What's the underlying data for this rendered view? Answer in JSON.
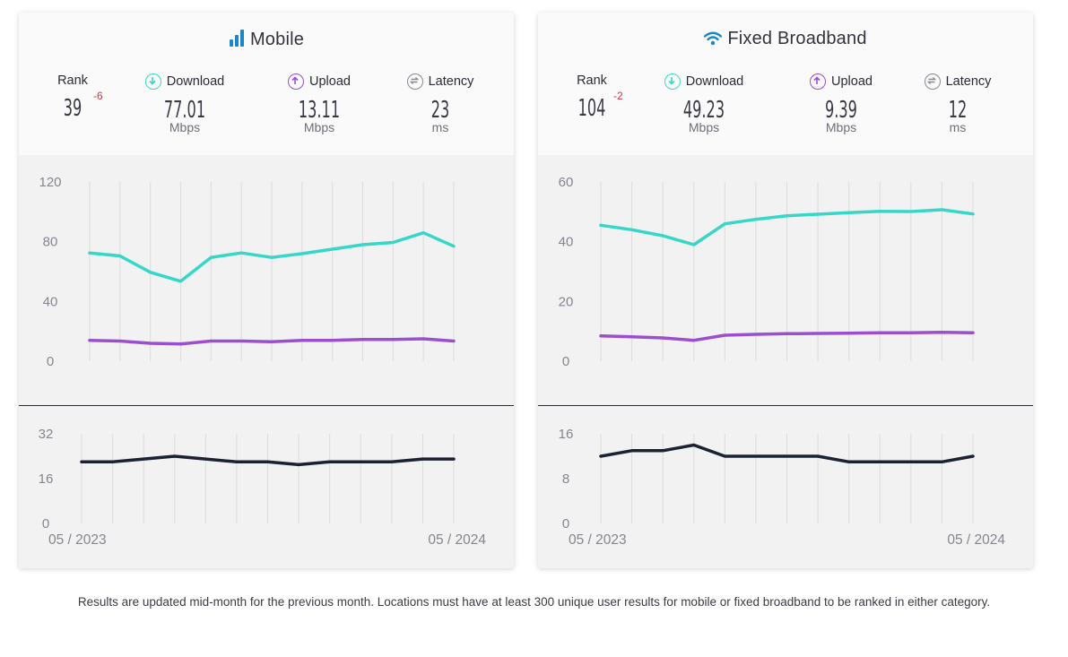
{
  "panels": [
    {
      "id": "mobile",
      "title": "Mobile",
      "icon": "signal-bars-icon",
      "metrics": {
        "rank": {
          "label": "Rank",
          "value": "39",
          "change": "-6"
        },
        "download": {
          "label": "Download",
          "value": "77.01",
          "unit": "Mbps",
          "icon": "arrow-down-circle-icon",
          "color": "#36d7c9"
        },
        "upload": {
          "label": "Upload",
          "value": "13.11",
          "unit": "Mbps",
          "icon": "arrow-up-circle-icon",
          "color": "#9b4fcf"
        },
        "latency": {
          "label": "Latency",
          "value": "23",
          "unit": "ms",
          "icon": "latency-circle-icon",
          "color": "#8a8a92"
        }
      },
      "x_labels": {
        "start": "05 / 2023",
        "end": "05 / 2024"
      }
    },
    {
      "id": "fixed",
      "title": "Fixed Broadband",
      "icon": "wifi-icon",
      "metrics": {
        "rank": {
          "label": "Rank",
          "value": "104",
          "change": "-2"
        },
        "download": {
          "label": "Download",
          "value": "49.23",
          "unit": "Mbps",
          "icon": "arrow-down-circle-icon",
          "color": "#36d7c9"
        },
        "upload": {
          "label": "Upload",
          "value": "9.39",
          "unit": "Mbps",
          "icon": "arrow-up-circle-icon",
          "color": "#9b4fcf"
        },
        "latency": {
          "label": "Latency",
          "value": "12",
          "unit": "ms",
          "icon": "latency-circle-icon",
          "color": "#8a8a92"
        }
      },
      "x_labels": {
        "start": "05 / 2023",
        "end": "05 / 2024"
      }
    }
  ],
  "colors": {
    "download": "#36d7c9",
    "upload": "#9b4fcf",
    "latency": "#1d2233",
    "title_icon": "#1a85c8",
    "rank_change": "#d0344a"
  },
  "chart_data": [
    {
      "type": "line",
      "panel": "Mobile",
      "chart": "speed",
      "x": [
        "05 / 2023",
        "06 / 2023",
        "07 / 2023",
        "08 / 2023",
        "09 / 2023",
        "10 / 2023",
        "11 / 2023",
        "12 / 2023",
        "01 / 2024",
        "02 / 2024",
        "03 / 2024",
        "04 / 2024",
        "05 / 2024"
      ],
      "ylim": [
        0,
        120
      ],
      "yticks": [
        0,
        40,
        80,
        120
      ],
      "grid": true,
      "series": [
        {
          "values": [
            72.5,
            70.5,
            59.5,
            53.5,
            69.5,
            72.5,
            69.5,
            72,
            75,
            78,
            79.5,
            86,
            77
          ]
        },
        {
          "values": [
            14,
            13.5,
            12,
            11.5,
            13.5,
            13.5,
            13,
            14,
            14,
            14.5,
            14.5,
            15,
            13.5
          ]
        }
      ]
    },
    {
      "type": "line",
      "panel": "Mobile",
      "chart": "latency",
      "x": [
        "05 / 2023",
        "06 / 2023",
        "07 / 2023",
        "08 / 2023",
        "09 / 2023",
        "10 / 2023",
        "11 / 2023",
        "12 / 2023",
        "01 / 2024",
        "02 / 2024",
        "03 / 2024",
        "04 / 2024",
        "05 / 2024"
      ],
      "ylim": [
        0,
        32
      ],
      "yticks": [
        0,
        16,
        32
      ],
      "grid": true,
      "series": [
        {
          "values": [
            22,
            22,
            23,
            24,
            23,
            22,
            22,
            21,
            22,
            22,
            22,
            23,
            23
          ]
        }
      ]
    },
    {
      "type": "line",
      "panel": "Fixed Broadband",
      "chart": "speed",
      "x": [
        "05 / 2023",
        "06 / 2023",
        "07 / 2023",
        "08 / 2023",
        "09 / 2023",
        "10 / 2023",
        "11 / 2023",
        "12 / 2023",
        "01 / 2024",
        "02 / 2024",
        "03 / 2024",
        "04 / 2024",
        "05 / 2024"
      ],
      "ylim": [
        0,
        60
      ],
      "yticks": [
        0,
        20,
        40,
        60
      ],
      "grid": true,
      "series": [
        {
          "values": [
            45.5,
            44,
            42,
            39,
            46,
            47.5,
            48.7,
            49.2,
            49.7,
            50.2,
            50.1,
            50.7,
            49.3
          ]
        },
        {
          "values": [
            8.5,
            8.2,
            7.8,
            7,
            8.7,
            9,
            9.2,
            9.3,
            9.4,
            9.5,
            9.5,
            9.7,
            9.5
          ]
        }
      ]
    },
    {
      "type": "line",
      "panel": "Fixed Broadband",
      "chart": "latency",
      "x": [
        "05 / 2023",
        "06 / 2023",
        "07 / 2023",
        "08 / 2023",
        "09 / 2023",
        "10 / 2023",
        "11 / 2023",
        "12 / 2023",
        "01 / 2024",
        "02 / 2024",
        "03 / 2024",
        "04 / 2024",
        "05 / 2024"
      ],
      "ylim": [
        0,
        16
      ],
      "yticks": [
        0,
        8,
        16
      ],
      "grid": true,
      "series": [
        {
          "values": [
            12,
            13,
            13,
            14,
            12,
            12,
            12,
            12,
            11,
            11,
            11,
            11,
            12
          ]
        }
      ]
    }
  ],
  "footnote": "Results are updated mid-month for the previous month. Locations must have at least 300 unique user results for mobile or fixed broadband to be ranked in either category."
}
